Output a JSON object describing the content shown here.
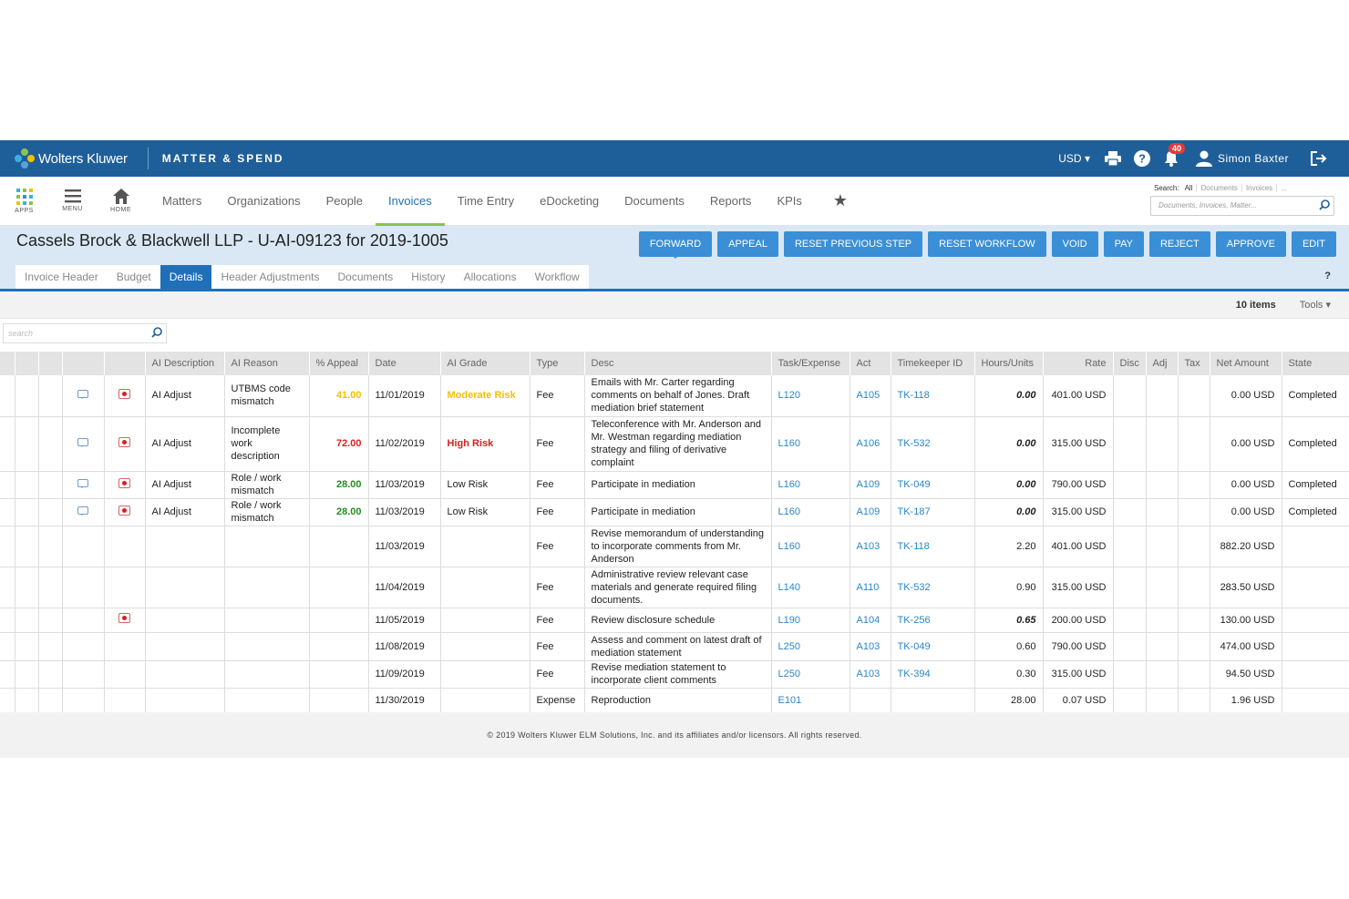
{
  "brand": {
    "name": "Wolters Kluwer",
    "product": "MATTER & SPEND"
  },
  "topbar": {
    "currency": "USD",
    "notifications": "40",
    "user_name": "Simon Baxter"
  },
  "nav": {
    "tools": [
      {
        "label": "APPS",
        "icon": "apps-grid-icon"
      },
      {
        "label": "MENU",
        "icon": "hamburger-icon"
      },
      {
        "label": "HOME",
        "icon": "home-icon"
      }
    ],
    "items": [
      "Matters",
      "Organizations",
      "People",
      "Invoices",
      "Time Entry",
      "eDocketing",
      "Documents",
      "Reports",
      "KPIs"
    ],
    "active": "Invoices"
  },
  "search": {
    "label": "Search:",
    "scopes": [
      "All",
      "Documents",
      "Invoices",
      "..."
    ],
    "placeholder": "Documents, Invoices, Matter..."
  },
  "page": {
    "title": "Cassels Brock & Blackwell LLP - U-AI-09123 for 2019-1005",
    "actions": [
      "FORWARD",
      "APPEAL",
      "RESET PREVIOUS STEP",
      "RESET WORKFLOW",
      "VOID",
      "PAY",
      "REJECT",
      "APPROVE",
      "EDIT"
    ],
    "subtabs": [
      "Invoice Header",
      "Budget",
      "Details",
      "Header Adjustments",
      "Documents",
      "History",
      "Allocations",
      "Workflow"
    ],
    "active_subtab": "Details",
    "help": "?"
  },
  "list": {
    "count": "10 items",
    "tools": "Tools",
    "search_placeholder": "search"
  },
  "table": {
    "headers": [
      "AI Description",
      "AI Reason",
      "% Appeal",
      "Date",
      "AI Grade",
      "Type",
      "Desc",
      "Task/Expense",
      "Act",
      "Timekeeper ID",
      "Hours/Units",
      "Rate",
      "Disc",
      "Adj",
      "Tax",
      "Net Amount",
      "State"
    ],
    "rows": [
      {
        "comment": true,
        "flag": true,
        "ai_desc": "AI Adjust",
        "ai_reason": "UTBMS code mismatch",
        "appeal": "41.00",
        "appeal_level": "moderate",
        "date": "11/01/2019",
        "grade": "Moderate Risk",
        "grade_level": "moderate",
        "type": "Fee",
        "desc": "Emails with Mr. Carter regarding comments on behalf of Jones. Draft mediation brief statement",
        "task": "L120",
        "act": "A105",
        "tk": "TK-118",
        "hours": "0.00",
        "hours_em": true,
        "rate": "401.00 USD",
        "net": "0.00 USD",
        "state": "Completed",
        "h": 45
      },
      {
        "comment": true,
        "flag": true,
        "ai_desc": "AI Adjust",
        "ai_reason": "Incomplete work description",
        "appeal": "72.00",
        "appeal_level": "high",
        "date": "11/02/2019",
        "grade": "High Risk",
        "grade_level": "high",
        "type": "Fee",
        "desc": "Teleconference with Mr. Anderson and Mr. Westman regarding mediation strategy and filing of derivative complaint",
        "task": "L160",
        "act": "A106",
        "tk": "TK-532",
        "hours": "0.00",
        "hours_em": true,
        "rate": "315.00 USD",
        "net": "0.00 USD",
        "state": "Completed",
        "h": 60
      },
      {
        "comment": true,
        "flag": true,
        "ai_desc": "AI Adjust",
        "ai_reason": "Role / work mismatch",
        "appeal": "28.00",
        "appeal_level": "low",
        "date": "11/03/2019",
        "grade": "Low Risk",
        "grade_level": "low",
        "type": "Fee",
        "desc": "Participate in mediation",
        "task": "L160",
        "act": "A109",
        "tk": "TK-049",
        "hours": "0.00",
        "hours_em": true,
        "rate": "790.00 USD",
        "net": "0.00 USD",
        "state": "Completed",
        "h": 30
      },
      {
        "comment": true,
        "flag": true,
        "ai_desc": "AI Adjust",
        "ai_reason": "Role / work mismatch",
        "appeal": "28.00",
        "appeal_level": "low",
        "date": "11/03/2019",
        "grade": "Low Risk",
        "grade_level": "low",
        "type": "Fee",
        "desc": "Participate in mediation",
        "task": "L160",
        "act": "A109",
        "tk": "TK-187",
        "hours": "0.00",
        "hours_em": true,
        "rate": "315.00 USD",
        "net": "0.00 USD",
        "state": "Completed",
        "h": 30
      },
      {
        "comment": false,
        "flag": false,
        "ai_desc": "",
        "ai_reason": "",
        "appeal": "",
        "appeal_level": "",
        "date": "11/03/2019",
        "grade": "",
        "grade_level": "",
        "type": "Fee",
        "desc": "Revise memorandum of understanding to incorporate comments from Mr. Anderson",
        "task": "L160",
        "act": "A103",
        "tk": "TK-118",
        "hours": "2.20",
        "hours_em": false,
        "rate": "401.00 USD",
        "net": "882.20 USD",
        "state": "",
        "h": 45
      },
      {
        "comment": false,
        "flag": false,
        "ai_desc": "",
        "ai_reason": "",
        "appeal": "",
        "appeal_level": "",
        "date": "11/04/2019",
        "grade": "",
        "grade_level": "",
        "type": "Fee",
        "desc": "Administrative review relevant case materials and generate required filing documents.",
        "task": "L140",
        "act": "A110",
        "tk": "TK-532",
        "hours": "0.90",
        "hours_em": false,
        "rate": "315.00 USD",
        "net": "283.50 USD",
        "state": "",
        "h": 45
      },
      {
        "comment": false,
        "flag": true,
        "ai_desc": "",
        "ai_reason": "",
        "appeal": "",
        "appeal_level": "",
        "date": "11/05/2019",
        "grade": "",
        "grade_level": "",
        "type": "Fee",
        "desc": "Review disclosure schedule",
        "task": "L190",
        "act": "A104",
        "tk": "TK-256",
        "hours": "0.65",
        "hours_em": true,
        "rate": "200.00 USD",
        "net": "130.00 USD",
        "state": "",
        "h": 27
      },
      {
        "comment": false,
        "flag": false,
        "ai_desc": "",
        "ai_reason": "",
        "appeal": "",
        "appeal_level": "",
        "date": "11/08/2019",
        "grade": "",
        "grade_level": "",
        "type": "Fee",
        "desc": "Assess and comment on latest draft of mediation statement",
        "task": "L250",
        "act": "A103",
        "tk": "TK-049",
        "hours": "0.60",
        "hours_em": false,
        "rate": "790.00 USD",
        "net": "474.00 USD",
        "state": "",
        "h": 31
      },
      {
        "comment": false,
        "flag": false,
        "ai_desc": "",
        "ai_reason": "",
        "appeal": "",
        "appeal_level": "",
        "date": "11/09/2019",
        "grade": "",
        "grade_level": "",
        "type": "Fee",
        "desc": "Revise mediation statement to incorporate client comments",
        "task": "L250",
        "act": "A103",
        "tk": "TK-394",
        "hours": "0.30",
        "hours_em": false,
        "rate": "315.00 USD",
        "net": "94.50 USD",
        "state": "",
        "h": 30
      },
      {
        "comment": false,
        "flag": false,
        "ai_desc": "",
        "ai_reason": "",
        "appeal": "",
        "appeal_level": "",
        "date": "11/30/2019",
        "grade": "",
        "grade_level": "",
        "type": "Expense",
        "desc": "Reproduction",
        "task": "E101",
        "act": "",
        "tk": "",
        "hours": "28.00",
        "hours_em": false,
        "rate": "0.07 USD",
        "net": "1.96 USD",
        "state": "",
        "h": 27
      }
    ]
  },
  "footer": "© 2019 Wolters Kluwer ELM Solutions, Inc. and its affiliates and/or licensors.  All rights reserved.",
  "colors": {
    "topbar": "#1f5f99",
    "accent": "#3a8fd6",
    "active_tab_underline": "#8bc34a",
    "moderate": "#f2c200",
    "high": "#d91e1e",
    "low": "#238d23"
  }
}
